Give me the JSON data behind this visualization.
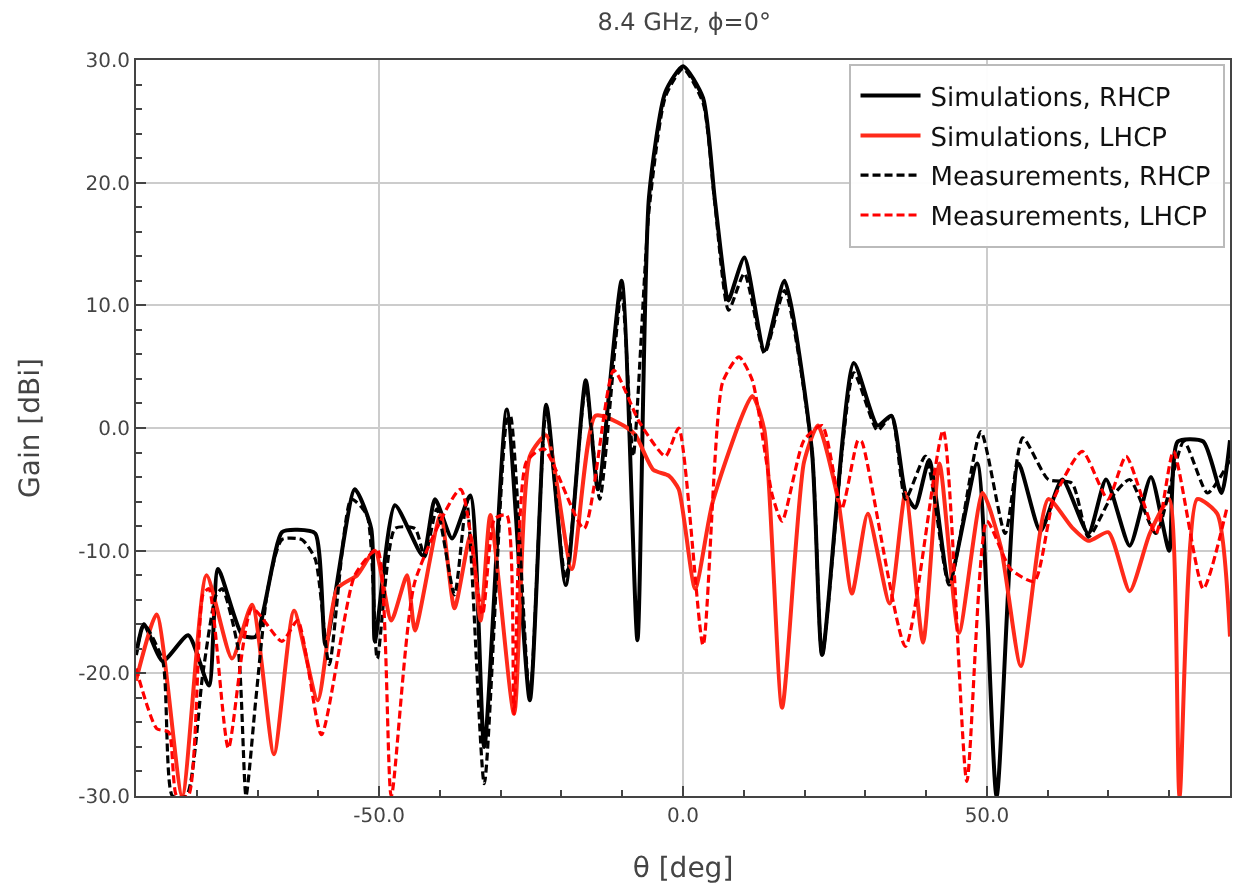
{
  "chart_data": {
    "type": "line",
    "title": "8.4 GHz, ϕ=0°",
    "xlabel": "θ [deg]",
    "ylabel": "Gain [dBi]",
    "xlim": [
      -90,
      90
    ],
    "ylim": [
      -30,
      30
    ],
    "xticks": [
      {
        "value": -50,
        "label": "-50.0"
      },
      {
        "value": 0,
        "label": "0.0"
      },
      {
        "value": 50,
        "label": "50.0"
      }
    ],
    "yticks": [
      {
        "value": -30,
        "label": "-30.0"
      },
      {
        "value": -20,
        "label": "-20.0"
      },
      {
        "value": -10,
        "label": "-10.0"
      },
      {
        "value": 0,
        "label": "0.0"
      },
      {
        "value": 10,
        "label": "10.0"
      },
      {
        "value": 20,
        "label": "20.0"
      },
      {
        "value": 30,
        "label": "30.0"
      }
    ],
    "grid": true,
    "legend": "top right",
    "marker": "none",
    "series": [
      {
        "name": "Simulations, RHCP",
        "color": "#000000",
        "line_style": "solid",
        "x": [
          -90,
          -88.7,
          -85.6,
          -81.4,
          -78,
          -76.5,
          -72.5,
          -70.3,
          -66,
          -63.4,
          -60.5,
          -58.8,
          -54,
          -51.3,
          -50.7,
          -47.4,
          -42.8,
          -40.8,
          -38,
          -35,
          -32.7,
          -29,
          -25.2,
          -22.5,
          -19.3,
          -16,
          -14,
          -10.1,
          -7.5,
          -5.6,
          -2.9,
          0,
          3.3,
          5.2,
          7.2,
          7.5,
          10.1,
          13.4,
          16.7,
          21.2,
          22.9,
          28.1,
          32,
          34.3,
          36.6,
          38.2,
          40.5,
          43.8,
          48.4,
          51.6,
          55.2,
          58.8,
          62.4,
          66.7,
          69.6,
          73.5,
          77,
          80,
          81.4,
          85.6,
          88.6,
          90
        ],
        "values": [
          -18.5,
          -16,
          -19,
          -16.9,
          -21,
          -11.5,
          -16.9,
          -17,
          -8.5,
          -8.3,
          -8.6,
          -17.7,
          -5,
          -8.2,
          -17.4,
          -6.3,
          -10.4,
          -5.8,
          -9,
          -5.5,
          -26,
          1.5,
          -22.2,
          1.9,
          -12.8,
          3.9,
          -5,
          12,
          -17.3,
          18.8,
          27.4,
          29.5,
          26.9,
          18.8,
          10.7,
          10.4,
          13.9,
          6.3,
          12,
          -1.8,
          -18.5,
          5.3,
          0.2,
          1,
          -5.3,
          -6.5,
          -2.6,
          -12.5,
          -2.9,
          -30,
          -2.9,
          -8.4,
          -4.2,
          -8.6,
          -4.2,
          -9.6,
          -4,
          -10,
          -1.1,
          -1.1,
          -5.3,
          -1
        ]
      },
      {
        "name": "Simulations, LHCP",
        "color": "#ff2a1a",
        "line_style": "solid",
        "x": [
          -90,
          -86.6,
          -82.4,
          -78.4,
          -74.2,
          -70.9,
          -67.3,
          -64,
          -60.1,
          -56.9,
          -53.6,
          -50.7,
          -48,
          -45.4,
          -44.1,
          -39.9,
          -37.6,
          -35,
          -33.3,
          -31.7,
          -27.8,
          -25.2,
          -22.5,
          -18.3,
          -14.4,
          -9.8,
          -7.8,
          -4.9,
          -2.3,
          -0.7,
          2,
          4.9,
          11.4,
          13.4,
          16.3,
          19.9,
          22.2,
          25.5,
          27.8,
          30.4,
          34,
          36.6,
          39.5,
          42.2,
          45.4,
          49.3,
          52.3,
          55.6,
          60.1,
          64,
          66.7,
          70,
          73.5,
          76.8,
          80,
          81.7,
          84.6,
          87.9,
          90
        ],
        "values": [
          -20.6,
          -15.2,
          -30,
          -12,
          -18.8,
          -14.4,
          -26.6,
          -14.9,
          -22.2,
          -13.1,
          -12,
          -10,
          -15.7,
          -12,
          -16.5,
          -7.1,
          -14.7,
          -8.8,
          -15.7,
          -7.1,
          -23.3,
          -2.3,
          -0.6,
          -11.5,
          1,
          0.2,
          -0.6,
          -3.4,
          -3.9,
          -5,
          -13.1,
          -6,
          2.6,
          -0.2,
          -22.8,
          -2.8,
          0.2,
          -5.8,
          -13.5,
          -7,
          -14.3,
          -5.3,
          -17.5,
          -2.9,
          -16.7,
          -5.3,
          -9.7,
          -19.4,
          -5.8,
          -8.1,
          -9.2,
          -8.5,
          -13.3,
          -8.6,
          -5.8,
          -30,
          -5.8,
          -7,
          -17
        ]
      },
      {
        "name": "Measurements, RHCP",
        "color": "#000000",
        "line_style": "dashed",
        "x": [
          -90,
          -88.7,
          -85.6,
          -84,
          -81.7,
          -79,
          -76.8,
          -75.8,
          -73.2,
          -71.9,
          -70.3,
          -68.3,
          -66,
          -62.7,
          -60.5,
          -58.2,
          -54.6,
          -52,
          -50.3,
          -47.4,
          -44.1,
          -42.5,
          -40.5,
          -37.6,
          -35.6,
          -32.7,
          -29,
          -28.4,
          -25.2,
          -22.5,
          -19.3,
          -16,
          -13.7,
          -10.1,
          -8.2,
          -5.6,
          -2.9,
          0,
          3.3,
          5.2,
          7.5,
          10.1,
          13.4,
          16.7,
          21.2,
          22.9,
          28.1,
          32,
          34.3,
          36.6,
          39.9,
          43.8,
          49,
          53,
          55.9,
          60.1,
          64,
          66.7,
          70.3,
          73.5,
          77.8,
          82.4,
          86.3,
          90
        ],
        "values": [
          -18.5,
          -16,
          -19,
          -30,
          -30,
          -20,
          -13.6,
          -13.1,
          -18,
          -30,
          -22.2,
          -13.1,
          -9.1,
          -9.1,
          -10.7,
          -19.3,
          -5.8,
          -7.1,
          -18.8,
          -8.2,
          -8.2,
          -10.5,
          -6.6,
          -13.6,
          -6,
          -29,
          0.6,
          1,
          -22,
          1.5,
          -12.3,
          3.4,
          -5.8,
          11.2,
          -2.3,
          17.7,
          27,
          29.3,
          26.5,
          18.5,
          9.6,
          12.6,
          6.1,
          11.2,
          -1.8,
          -18.5,
          4.5,
          -0.2,
          1,
          -5.8,
          -2.3,
          -12.8,
          -0.3,
          -8.6,
          -0.8,
          -4.2,
          -4.5,
          -8.9,
          -5.8,
          -4.2,
          -8.6,
          -1.1,
          -5.3,
          -2.6
        ]
      },
      {
        "name": "Measurements, LHCP",
        "color": "#ff0000",
        "line_style": "dashed",
        "x": [
          -90,
          -86.6,
          -84.6,
          -83.3,
          -81.4,
          -79,
          -78,
          -74.8,
          -70.9,
          -66,
          -63.4,
          -59.5,
          -54,
          -50.3,
          -48,
          -44.1,
          -36.6,
          -33,
          -31,
          -29,
          -27.8,
          -25.8,
          -22.9,
          -16.3,
          -11.4,
          -7.2,
          -2.9,
          -0.7,
          3.3,
          6.5,
          9.2,
          11.4,
          14.7,
          16.3,
          19.9,
          22.9,
          26.1,
          28.8,
          29.4,
          36.6,
          42.8,
          46.7,
          50,
          53.9,
          57.8,
          61,
          65.7,
          69.9,
          72.9,
          77.8,
          80.7,
          85.6,
          89.5
        ],
        "values": [
          -19.6,
          -24.5,
          -24.8,
          -30,
          -30,
          -13.6,
          -13.1,
          -26.1,
          -14.7,
          -17.4,
          -15.7,
          -25,
          -12,
          -9.9,
          -30,
          -12.5,
          -5,
          -15.2,
          -7.4,
          -7.1,
          -23.3,
          -2.8,
          -1.7,
          -8.2,
          4.7,
          0.5,
          -2.3,
          0,
          -17.7,
          3.7,
          5.8,
          3.9,
          -5.5,
          -7.6,
          -1,
          0.2,
          -6.6,
          -1,
          -1.1,
          -17.8,
          -0.2,
          -28.8,
          -7.6,
          -11.5,
          -12.5,
          -5.8,
          -1.9,
          -5.8,
          -2.3,
          -8.6,
          -1.9,
          -13.1,
          -6.5
        ]
      }
    ]
  }
}
